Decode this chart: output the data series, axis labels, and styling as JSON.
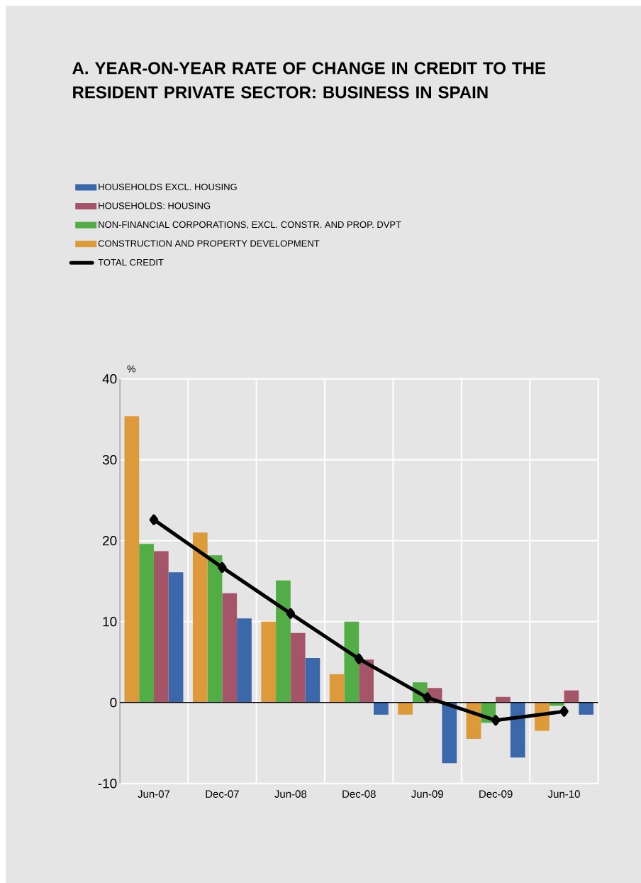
{
  "chart_data": {
    "type": "bar",
    "title": "A. YEAR-ON-YEAR RATE OF CHANGE IN CREDIT TO THE RESIDENT PRIVATE SECTOR: BUSINESS IN SPAIN",
    "ylabel": "%",
    "categories": [
      "Jun-07",
      "Dec-07",
      "Jun-08",
      "Dec-08",
      "Jun-09",
      "Dec-09",
      "Jun-10"
    ],
    "series": [
      {
        "name": "HOUSEHOLDS EXCL. HOUSING",
        "color": "#3a68aa",
        "values": [
          16.1,
          10.4,
          5.5,
          -1.5,
          -7.5,
          -6.8,
          -1.5
        ]
      },
      {
        "name": "HOUSEHOLDS: HOUSING",
        "color": "#a45668",
        "values": [
          18.7,
          13.5,
          8.6,
          5.3,
          1.8,
          0.7,
          1.5
        ]
      },
      {
        "name": "NON-FINANCIAL CORPORATIONS, EXCL. CONSTR. AND PROP. DVPT",
        "color": "#52ad46",
        "values": [
          19.6,
          18.2,
          15.1,
          10.0,
          2.5,
          -2.5,
          -0.4
        ]
      },
      {
        "name": "CONSTRUCTION AND PROPERTY DEVELOPMENT",
        "color": "#dd9a3a",
        "values": [
          35.4,
          21.0,
          10.0,
          3.5,
          -1.5,
          -4.5,
          -3.5
        ]
      },
      {
        "name": "TOTAL CREDIT",
        "type": "line",
        "color": "#000000",
        "marker": "diamond",
        "values": [
          22.6,
          16.7,
          11.0,
          5.4,
          0.6,
          -2.2,
          -1.1
        ]
      }
    ],
    "ylim": [
      -10,
      40
    ],
    "yticks": [
      -10,
      0,
      10,
      20,
      30,
      40
    ],
    "grid": true,
    "legend": "top"
  }
}
